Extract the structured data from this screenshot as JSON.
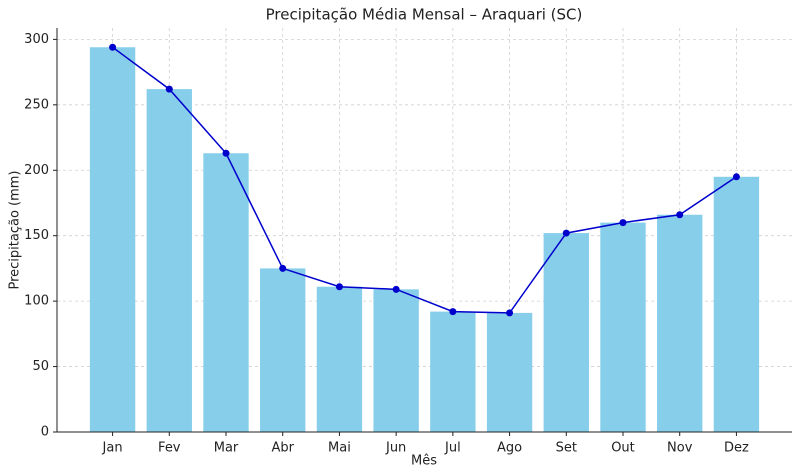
{
  "chart_data": {
    "type": "bar",
    "title": "Precipitação Média Mensal – Araquari (SC)",
    "x_label": "Mês",
    "y_label": "Precipitação (mm)",
    "categories": [
      "Jan",
      "Fev",
      "Mar",
      "Abr",
      "Mai",
      "Jun",
      "Jul",
      "Ago",
      "Set",
      "Out",
      "Nov",
      "Dez"
    ],
    "values": [
      294,
      262,
      213,
      125,
      111,
      109,
      92,
      91,
      152,
      160,
      166,
      195
    ],
    "color": "#87ceeb",
    "line_overlay": true,
    "line_color": "#0000cd",
    "ylim": [
      0,
      308.7
    ],
    "yticks": [
      0,
      50,
      100,
      150,
      200,
      250,
      300
    ],
    "grid": true
  }
}
